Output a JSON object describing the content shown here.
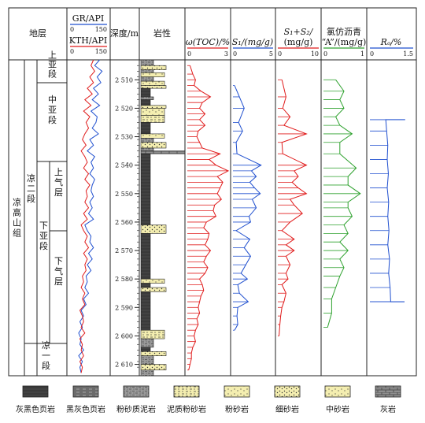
{
  "headers": {
    "strata": "地层",
    "gr": "GR/API",
    "kth": "KTH/API",
    "gr_min": "0",
    "gr_max": "150",
    "kth_min": "0",
    "kth_max": "150",
    "depth": "深度/m",
    "lith": "岩性",
    "toc": "ω(TOC)/%",
    "toc_min": "0",
    "toc_max": "3",
    "s1": "S₁/(mg/g)",
    "s1_min": "0",
    "s1_max": "5",
    "s1s2_a": "S₁+S₂/",
    "s1s2_b": "(mg/g)",
    "s1s2_min": "0",
    "s1s2_max": "10",
    "bitumen_a": "氯仿沥青",
    "bitumen_b": "“A”/(mg/g)",
    "bitumen_min": "0",
    "bitumen_max": "1",
    "ro": "Rₒ/%",
    "ro_min": "0",
    "ro_max": "1.5"
  },
  "strata": {
    "group": "凉高山组",
    "member2": "凉二段",
    "member1": "凉一段",
    "sub_upper": "上亚段",
    "sub_middle": "中亚段",
    "sub_lower": "下亚段",
    "layer_upper": "上气层",
    "layer_lower": "下气层"
  },
  "depth_ticks": [
    "2 510",
    "2 520",
    "2 530",
    "2 540",
    "2 550",
    "2 560",
    "2 570",
    "2 580",
    "2 590",
    "2 600",
    "2 610"
  ],
  "legend": [
    {
      "label": "灰黑色页岩",
      "pattern": "grayblack-shale"
    },
    {
      "label": "黑灰色页岩",
      "pattern": "blackgray-shale"
    },
    {
      "label": "粉砂质泥岩",
      "pattern": "silty-mudstone"
    },
    {
      "label": "泥质粉砂岩",
      "pattern": "muddy-siltstone"
    },
    {
      "label": "粉砂岩",
      "pattern": "siltstone"
    },
    {
      "label": "细砂岩",
      "pattern": "fine-sandstone"
    },
    {
      "label": "中砂岩",
      "pattern": "medium-sandstone"
    },
    {
      "label": "灰岩",
      "pattern": "limestone"
    }
  ],
  "colors": {
    "gr": "#1f4fcf",
    "kth": "#e01b1b",
    "toc": "#e01b1b",
    "s1": "#1f4fcf",
    "s1s2": "#e01b1b",
    "bitumen": "#2da12d",
    "ro": "#1f4fcf",
    "sand": "#f4eeb0"
  },
  "chart_data": {
    "type": "well-log",
    "depth_range": [
      2503,
      2614
    ],
    "gr_kth_range": [
      0,
      150
    ],
    "lithology": [
      {
        "top": 2503,
        "base": 2505,
        "rock": "silty-mudstone"
      },
      {
        "top": 2505,
        "base": 2506.5,
        "rock": "fine-sandstone"
      },
      {
        "top": 2506.5,
        "base": 2507.5,
        "rock": "silty-mudstone"
      },
      {
        "top": 2507.5,
        "base": 2509,
        "rock": "siltstone"
      },
      {
        "top": 2509,
        "base": 2510.5,
        "rock": "silty-mudstone"
      },
      {
        "top": 2510.5,
        "base": 2512,
        "rock": "siltstone"
      },
      {
        "top": 2512,
        "base": 2513,
        "rock": "fine-sandstone"
      },
      {
        "top": 2513,
        "base": 2516,
        "rock": "grayblack-shale"
      },
      {
        "top": 2516,
        "base": 2517,
        "rock": "silty-mudstone"
      },
      {
        "top": 2517,
        "base": 2519,
        "rock": "grayblack-shale"
      },
      {
        "top": 2519,
        "base": 2520,
        "rock": "fine-sandstone"
      },
      {
        "top": 2520,
        "base": 2522.5,
        "rock": "siltstone"
      },
      {
        "top": 2522.5,
        "base": 2525,
        "rock": "muddy-siltstone"
      },
      {
        "top": 2525,
        "base": 2529,
        "rock": "grayblack-shale"
      },
      {
        "top": 2529,
        "base": 2530.5,
        "rock": "siltstone"
      },
      {
        "top": 2530.5,
        "base": 2532,
        "rock": "silty-mudstone"
      },
      {
        "top": 2532,
        "base": 2534,
        "rock": "fine-sandstone"
      },
      {
        "top": 2534,
        "base": 2535,
        "rock": "silty-mudstone"
      },
      {
        "top": 2535,
        "base": 2536,
        "rock": "limestone"
      },
      {
        "top": 2536,
        "base": 2561,
        "rock": "grayblack-shale"
      },
      {
        "top": 2561,
        "base": 2564,
        "rock": "fine-sandstone"
      },
      {
        "top": 2564,
        "base": 2580,
        "rock": "grayblack-shale"
      },
      {
        "top": 2580,
        "base": 2581.5,
        "rock": "siltstone"
      },
      {
        "top": 2581.5,
        "base": 2583,
        "rock": "grayblack-shale"
      },
      {
        "top": 2583,
        "base": 2584.5,
        "rock": "fine-sandstone"
      },
      {
        "top": 2584.5,
        "base": 2598,
        "rock": "grayblack-shale"
      },
      {
        "top": 2598,
        "base": 2601,
        "rock": "muddy-siltstone"
      },
      {
        "top": 2601,
        "base": 2604,
        "rock": "silty-mudstone"
      },
      {
        "top": 2604,
        "base": 2605.5,
        "rock": "grayblack-shale"
      },
      {
        "top": 2605.5,
        "base": 2607,
        "rock": "fine-sandstone"
      },
      {
        "top": 2607,
        "base": 2610,
        "rock": "silty-mudstone"
      },
      {
        "top": 2610,
        "base": 2612,
        "rock": "fine-sandstone"
      },
      {
        "top": 2612,
        "base": 2614,
        "rock": "silty-mudstone"
      }
    ],
    "toc": [
      {
        "d": 2505,
        "v": 0.2
      },
      {
        "d": 2508,
        "v": 0.4
      },
      {
        "d": 2510,
        "v": 0.6
      },
      {
        "d": 2512,
        "v": 0.5
      },
      {
        "d": 2514,
        "v": 1.0
      },
      {
        "d": 2516,
        "v": 1.7
      },
      {
        "d": 2518,
        "v": 1.1
      },
      {
        "d": 2520,
        "v": 0.9
      },
      {
        "d": 2522,
        "v": 1.3
      },
      {
        "d": 2524,
        "v": 0.9
      },
      {
        "d": 2526,
        "v": 1.3
      },
      {
        "d": 2528,
        "v": 0.8
      },
      {
        "d": 2530,
        "v": 0.7
      },
      {
        "d": 2532,
        "v": 0.9
      },
      {
        "d": 2534,
        "v": 1.1
      },
      {
        "d": 2536,
        "v": 2.4
      },
      {
        "d": 2538,
        "v": 1.6
      },
      {
        "d": 2540,
        "v": 2.1
      },
      {
        "d": 2542,
        "v": 3.0
      },
      {
        "d": 2544,
        "v": 2.2
      },
      {
        "d": 2546,
        "v": 2.6
      },
      {
        "d": 2548,
        "v": 2.4
      },
      {
        "d": 2550,
        "v": 2.2
      },
      {
        "d": 2552,
        "v": 2.5
      },
      {
        "d": 2554,
        "v": 2.0
      },
      {
        "d": 2556,
        "v": 1.9
      },
      {
        "d": 2558,
        "v": 2.1
      },
      {
        "d": 2560,
        "v": 1.4
      },
      {
        "d": 2562,
        "v": 1.2
      },
      {
        "d": 2564,
        "v": 1.6
      },
      {
        "d": 2566,
        "v": 1.5
      },
      {
        "d": 2568,
        "v": 1.3
      },
      {
        "d": 2570,
        "v": 1.7
      },
      {
        "d": 2572,
        "v": 1.4
      },
      {
        "d": 2574,
        "v": 1.2
      },
      {
        "d": 2576,
        "v": 1.5
      },
      {
        "d": 2578,
        "v": 1.3
      },
      {
        "d": 2580,
        "v": 0.9
      },
      {
        "d": 2582,
        "v": 1.1
      },
      {
        "d": 2584,
        "v": 1.2
      },
      {
        "d": 2586,
        "v": 1.0
      },
      {
        "d": 2588,
        "v": 0.9
      },
      {
        "d": 2590,
        "v": 0.8
      },
      {
        "d": 2592,
        "v": 0.9
      },
      {
        "d": 2594,
        "v": 0.7
      },
      {
        "d": 2596,
        "v": 0.8
      },
      {
        "d": 2598,
        "v": 0.6
      },
      {
        "d": 2600,
        "v": 0.5
      },
      {
        "d": 2602,
        "v": 0.6
      },
      {
        "d": 2604,
        "v": 0.4
      },
      {
        "d": 2606,
        "v": 0.3
      },
      {
        "d": 2608,
        "v": 0.3
      },
      {
        "d": 2610,
        "v": 0.2
      },
      {
        "d": 2612,
        "v": 0.1
      }
    ],
    "s1": [
      {
        "d": 2512,
        "v": 0.2
      },
      {
        "d": 2516,
        "v": 0.8
      },
      {
        "d": 2520,
        "v": 1.4
      },
      {
        "d": 2525,
        "v": 0.7
      },
      {
        "d": 2528,
        "v": 1.2
      },
      {
        "d": 2532,
        "v": 0.4
      },
      {
        "d": 2536,
        "v": 0.5
      },
      {
        "d": 2540,
        "v": 3.5
      },
      {
        "d": 2542,
        "v": 2.3
      },
      {
        "d": 2544,
        "v": 2.9
      },
      {
        "d": 2546,
        "v": 2.1
      },
      {
        "d": 2548,
        "v": 2.7
      },
      {
        "d": 2550,
        "v": 3.4
      },
      {
        "d": 2552,
        "v": 2.4
      },
      {
        "d": 2555,
        "v": 2.9
      },
      {
        "d": 2558,
        "v": 2.0
      },
      {
        "d": 2560,
        "v": 2.2
      },
      {
        "d": 2563,
        "v": 0.4
      },
      {
        "d": 2566,
        "v": 2.1
      },
      {
        "d": 2569,
        "v": 1.4
      },
      {
        "d": 2572,
        "v": 2.2
      },
      {
        "d": 2575,
        "v": 1.6
      },
      {
        "d": 2578,
        "v": 1.0
      },
      {
        "d": 2580,
        "v": 1.8
      },
      {
        "d": 2582,
        "v": 0.6
      },
      {
        "d": 2585,
        "v": 0.8
      },
      {
        "d": 2588,
        "v": 1.9
      },
      {
        "d": 2590,
        "v": 0.6
      },
      {
        "d": 2593,
        "v": 0.5
      },
      {
        "d": 2596,
        "v": 0.6
      },
      {
        "d": 2598,
        "v": 0.2
      }
    ],
    "s1s2": [
      {
        "d": 2510,
        "v": 1.0
      },
      {
        "d": 2516,
        "v": 2.0
      },
      {
        "d": 2520,
        "v": 1.2
      },
      {
        "d": 2523,
        "v": 3.0
      },
      {
        "d": 2526,
        "v": 1.5
      },
      {
        "d": 2529,
        "v": 7.0
      },
      {
        "d": 2532,
        "v": 1.0
      },
      {
        "d": 2536,
        "v": 1.2
      },
      {
        "d": 2540,
        "v": 7.0
      },
      {
        "d": 2542,
        "v": 4.0
      },
      {
        "d": 2544,
        "v": 5.0
      },
      {
        "d": 2546,
        "v": 3.5
      },
      {
        "d": 2548,
        "v": 5.0
      },
      {
        "d": 2550,
        "v": 7.0
      },
      {
        "d": 2552,
        "v": 3.0
      },
      {
        "d": 2554,
        "v": 4.0
      },
      {
        "d": 2557,
        "v": 6.0
      },
      {
        "d": 2560,
        "v": 3.0
      },
      {
        "d": 2563,
        "v": 1.0
      },
      {
        "d": 2566,
        "v": 4.0
      },
      {
        "d": 2568,
        "v": 2.0
      },
      {
        "d": 2570,
        "v": 4.0
      },
      {
        "d": 2572,
        "v": 2.0
      },
      {
        "d": 2575,
        "v": 3.0
      },
      {
        "d": 2578,
        "v": 2.0
      },
      {
        "d": 2580,
        "v": 2.5
      },
      {
        "d": 2582,
        "v": 1.0
      },
      {
        "d": 2585,
        "v": 2.0
      },
      {
        "d": 2588,
        "v": 1.5
      },
      {
        "d": 2590,
        "v": 1.0
      },
      {
        "d": 2593,
        "v": 0.7
      },
      {
        "d": 2596,
        "v": 0.5
      },
      {
        "d": 2600,
        "v": 0.3
      }
    ],
    "bitumen": [
      {
        "d": 2510,
        "v": 0.3
      },
      {
        "d": 2514,
        "v": 0.5
      },
      {
        "d": 2517,
        "v": 0.4
      },
      {
        "d": 2520,
        "v": 0.5
      },
      {
        "d": 2523,
        "v": 0.3
      },
      {
        "d": 2526,
        "v": 0.4
      },
      {
        "d": 2529,
        "v": 0.7
      },
      {
        "d": 2532,
        "v": 0.4
      },
      {
        "d": 2536,
        "v": 0.4
      },
      {
        "d": 2541,
        "v": 0.8
      },
      {
        "d": 2544,
        "v": 0.6
      },
      {
        "d": 2547,
        "v": 0.6
      },
      {
        "d": 2550,
        "v": 0.9
      },
      {
        "d": 2553,
        "v": 0.6
      },
      {
        "d": 2555,
        "v": 0.6
      },
      {
        "d": 2558,
        "v": 0.7
      },
      {
        "d": 2561,
        "v": 0.5
      },
      {
        "d": 2564,
        "v": 0.6
      },
      {
        "d": 2567,
        "v": 0.4
      },
      {
        "d": 2570,
        "v": 0.6
      },
      {
        "d": 2573,
        "v": 0.4
      },
      {
        "d": 2576,
        "v": 0.5
      },
      {
        "d": 2579,
        "v": 0.4
      },
      {
        "d": 2583,
        "v": 0.3
      },
      {
        "d": 2587,
        "v": 0.2
      },
      {
        "d": 2592,
        "v": 0.2
      },
      {
        "d": 2597,
        "v": 0.1
      }
    ],
    "ro": [
      {
        "d": 2524,
        "v": 1.22
      },
      {
        "d": 2524,
        "v": 0.55
      },
      {
        "d": 2528,
        "v": 0.58
      },
      {
        "d": 2533,
        "v": 0.62
      },
      {
        "d": 2538,
        "v": 0.6
      },
      {
        "d": 2543,
        "v": 0.64
      },
      {
        "d": 2548,
        "v": 0.6
      },
      {
        "d": 2553,
        "v": 0.65
      },
      {
        "d": 2558,
        "v": 0.62
      },
      {
        "d": 2563,
        "v": 0.66
      },
      {
        "d": 2568,
        "v": 0.62
      },
      {
        "d": 2573,
        "v": 0.68
      },
      {
        "d": 2578,
        "v": 0.65
      },
      {
        "d": 2583,
        "v": 0.7
      },
      {
        "d": 2588,
        "v": 0.72
      },
      {
        "d": 2588,
        "v": 1.2
      }
    ],
    "gr": [
      {
        "d": 2503,
        "v": 120
      },
      {
        "d": 2505,
        "v": 100
      },
      {
        "d": 2507,
        "v": 130
      },
      {
        "d": 2509,
        "v": 110
      },
      {
        "d": 2511,
        "v": 125
      },
      {
        "d": 2513,
        "v": 95
      },
      {
        "d": 2515,
        "v": 115
      },
      {
        "d": 2517,
        "v": 90
      },
      {
        "d": 2519,
        "v": 120
      },
      {
        "d": 2521,
        "v": 85
      },
      {
        "d": 2523,
        "v": 110
      },
      {
        "d": 2525,
        "v": 105
      },
      {
        "d": 2527,
        "v": 90
      },
      {
        "d": 2529,
        "v": 115
      },
      {
        "d": 2531,
        "v": 80
      },
      {
        "d": 2533,
        "v": 95
      },
      {
        "d": 2535,
        "v": 70
      },
      {
        "d": 2537,
        "v": 100
      },
      {
        "d": 2539,
        "v": 85
      },
      {
        "d": 2541,
        "v": 95
      },
      {
        "d": 2543,
        "v": 80
      },
      {
        "d": 2545,
        "v": 100
      },
      {
        "d": 2547,
        "v": 90
      },
      {
        "d": 2549,
        "v": 85
      },
      {
        "d": 2551,
        "v": 95
      },
      {
        "d": 2553,
        "v": 80
      },
      {
        "d": 2555,
        "v": 90
      },
      {
        "d": 2557,
        "v": 75
      },
      {
        "d": 2559,
        "v": 95
      },
      {
        "d": 2561,
        "v": 60
      },
      {
        "d": 2563,
        "v": 70
      },
      {
        "d": 2565,
        "v": 85
      },
      {
        "d": 2567,
        "v": 80
      },
      {
        "d": 2569,
        "v": 95
      },
      {
        "d": 2571,
        "v": 75
      },
      {
        "d": 2573,
        "v": 90
      },
      {
        "d": 2575,
        "v": 70
      },
      {
        "d": 2577,
        "v": 85
      },
      {
        "d": 2579,
        "v": 65
      },
      {
        "d": 2581,
        "v": 70
      },
      {
        "d": 2583,
        "v": 60
      },
      {
        "d": 2585,
        "v": 75
      },
      {
        "d": 2587,
        "v": 55
      },
      {
        "d": 2589,
        "v": 65
      },
      {
        "d": 2591,
        "v": 45
      },
      {
        "d": 2593,
        "v": 55
      },
      {
        "d": 2595,
        "v": 40
      },
      {
        "d": 2597,
        "v": 50
      },
      {
        "d": 2599,
        "v": 35
      },
      {
        "d": 2601,
        "v": 45
      },
      {
        "d": 2603,
        "v": 40
      },
      {
        "d": 2605,
        "v": 55
      },
      {
        "d": 2607,
        "v": 35
      },
      {
        "d": 2609,
        "v": 50
      },
      {
        "d": 2611,
        "v": 40
      },
      {
        "d": 2613,
        "v": 45
      }
    ],
    "kth": [
      {
        "d": 2503,
        "v": 95
      },
      {
        "d": 2505,
        "v": 85
      },
      {
        "d": 2507,
        "v": 100
      },
      {
        "d": 2509,
        "v": 80
      },
      {
        "d": 2511,
        "v": 95
      },
      {
        "d": 2513,
        "v": 70
      },
      {
        "d": 2515,
        "v": 90
      },
      {
        "d": 2517,
        "v": 60
      },
      {
        "d": 2519,
        "v": 85
      },
      {
        "d": 2521,
        "v": 55
      },
      {
        "d": 2523,
        "v": 80
      },
      {
        "d": 2525,
        "v": 65
      },
      {
        "d": 2527,
        "v": 75
      },
      {
        "d": 2529,
        "v": 60
      },
      {
        "d": 2531,
        "v": 50
      },
      {
        "d": 2533,
        "v": 65
      },
      {
        "d": 2535,
        "v": 45
      },
      {
        "d": 2537,
        "v": 60
      },
      {
        "d": 2539,
        "v": 70
      },
      {
        "d": 2541,
        "v": 55
      },
      {
        "d": 2543,
        "v": 75
      },
      {
        "d": 2545,
        "v": 60
      },
      {
        "d": 2547,
        "v": 80
      },
      {
        "d": 2549,
        "v": 65
      },
      {
        "d": 2551,
        "v": 70
      },
      {
        "d": 2553,
        "v": 60
      },
      {
        "d": 2555,
        "v": 75
      },
      {
        "d": 2557,
        "v": 55
      },
      {
        "d": 2559,
        "v": 70
      },
      {
        "d": 2561,
        "v": 45
      },
      {
        "d": 2563,
        "v": 55
      },
      {
        "d": 2565,
        "v": 70
      },
      {
        "d": 2567,
        "v": 60
      },
      {
        "d": 2569,
        "v": 75
      },
      {
        "d": 2571,
        "v": 55
      },
      {
        "d": 2573,
        "v": 70
      },
      {
        "d": 2575,
        "v": 60
      },
      {
        "d": 2577,
        "v": 65
      },
      {
        "d": 2579,
        "v": 50
      },
      {
        "d": 2581,
        "v": 55
      },
      {
        "d": 2583,
        "v": 45
      },
      {
        "d": 2585,
        "v": 60
      },
      {
        "d": 2587,
        "v": 50
      },
      {
        "d": 2589,
        "v": 60
      },
      {
        "d": 2591,
        "v": 40
      },
      {
        "d": 2593,
        "v": 50
      },
      {
        "d": 2595,
        "v": 55
      },
      {
        "d": 2597,
        "v": 45
      },
      {
        "d": 2599,
        "v": 60
      },
      {
        "d": 2601,
        "v": 40
      },
      {
        "d": 2603,
        "v": 50
      },
      {
        "d": 2605,
        "v": 45
      },
      {
        "d": 2607,
        "v": 55
      },
      {
        "d": 2609,
        "v": 40
      },
      {
        "d": 2611,
        "v": 50
      },
      {
        "d": 2613,
        "v": 45
      }
    ]
  }
}
